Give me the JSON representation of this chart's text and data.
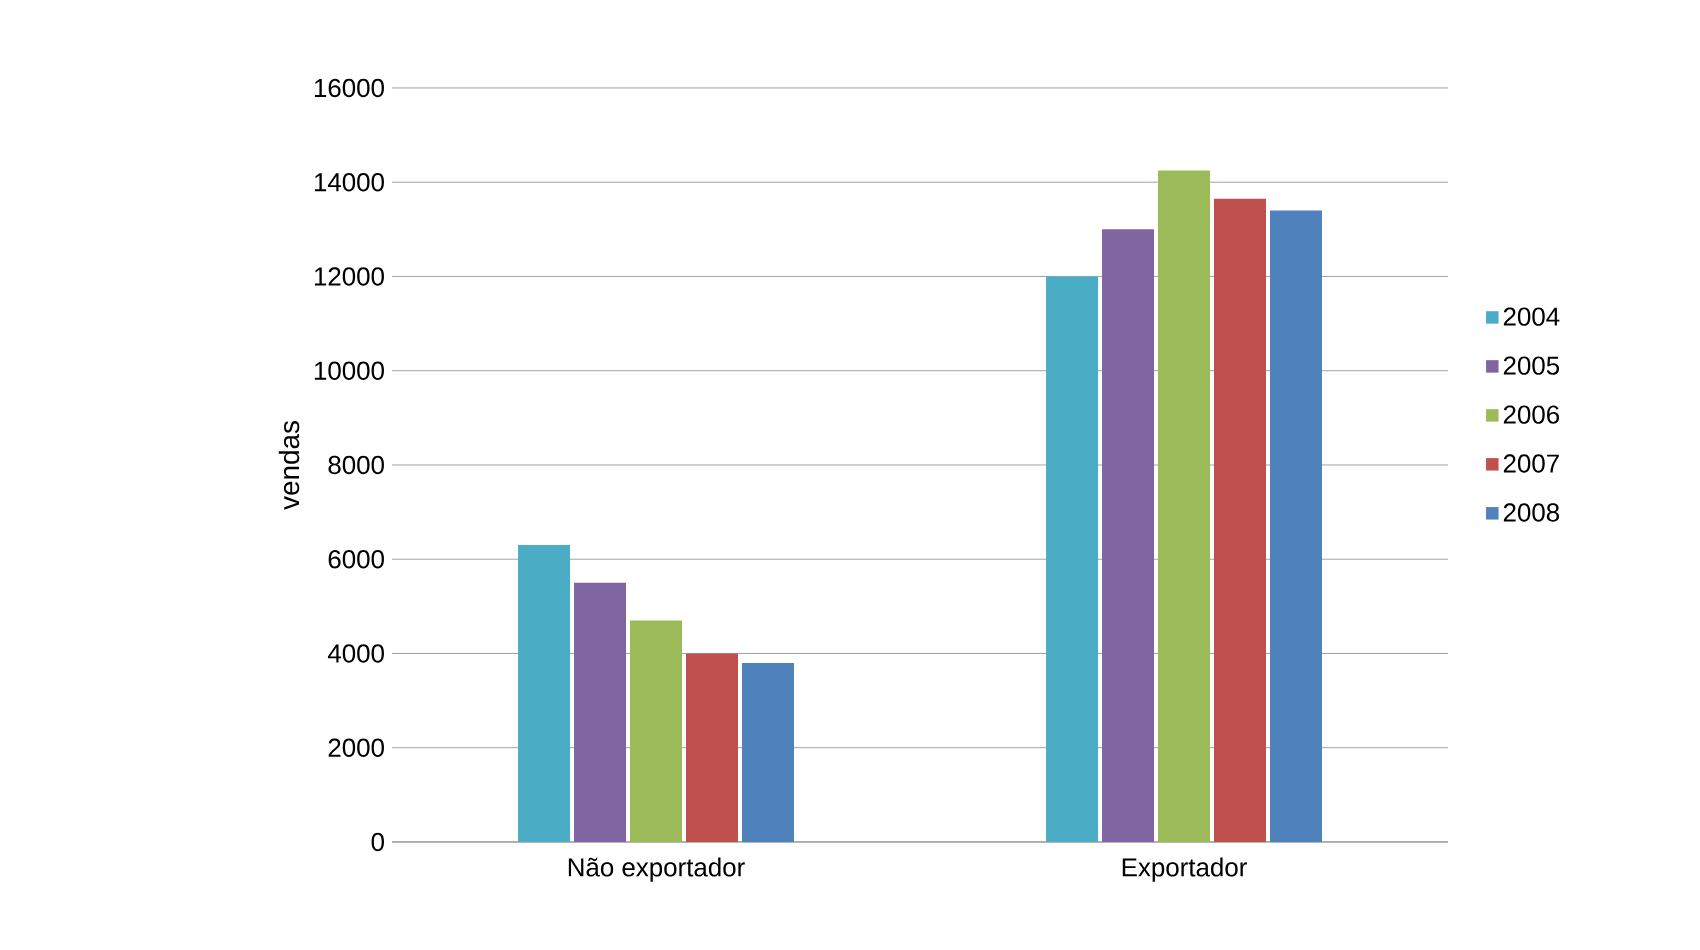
{
  "chart_data": {
    "type": "bar",
    "ylabel": "vendas",
    "categories": [
      "Não exportador",
      "Exportador"
    ],
    "series": [
      {
        "name": "2004",
        "color": "#4bacc6",
        "values": [
          6300,
          12000
        ]
      },
      {
        "name": "2005",
        "color": "#8064a2",
        "values": [
          5500,
          13000
        ]
      },
      {
        "name": "2006",
        "color": "#9bbb59",
        "values": [
          4700,
          14250
        ]
      },
      {
        "name": "2007",
        "color": "#c0504d",
        "values": [
          4000,
          13650
        ]
      },
      {
        "name": "2008",
        "color": "#4f81bd",
        "values": [
          3800,
          13400
        ]
      }
    ],
    "ylim": [
      0,
      16000
    ],
    "yticks": [
      0,
      2000,
      4000,
      6000,
      8000,
      10000,
      12000,
      14000,
      16000
    ],
    "grid": "y",
    "legend": "right"
  }
}
